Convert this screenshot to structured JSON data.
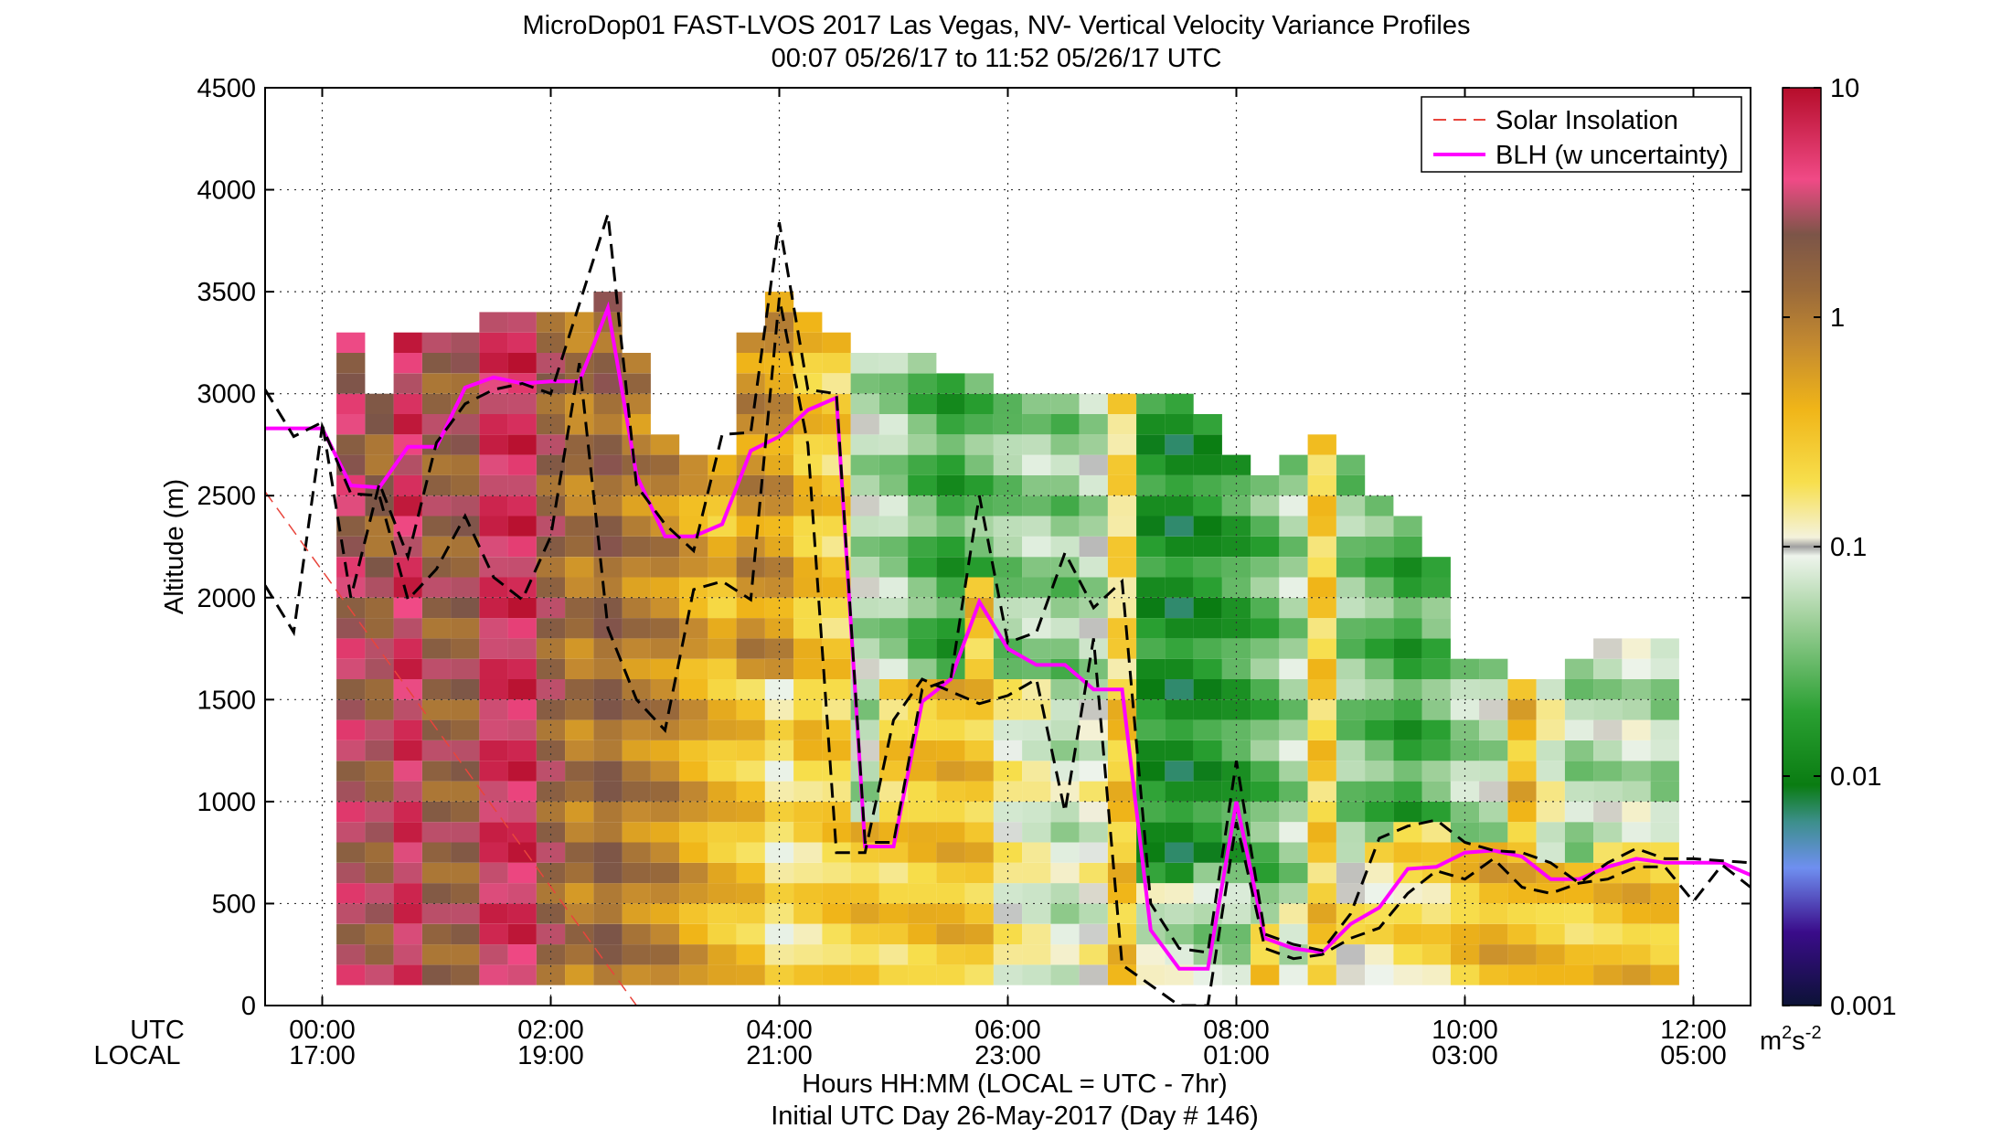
{
  "chart_data": {
    "type": "heatmap",
    "title": "MicroDop01 FAST-LVOS 2017 Las Vegas, NV- Vertical Velocity Variance Profiles",
    "subtitle": "00:07 05/26/17 to 11:52 05/26/17  UTC",
    "ylabel": "Altitude (m)",
    "xlabel": "Hours HH:MM  (LOCAL = UTC - 7hr)",
    "xlabel2": "Initial UTC Day 26-May-2017 (Day # 146)",
    "row_label_utc": "UTC",
    "row_label_local": "LOCAL",
    "xlim_hours": [
      -0.5,
      12.5
    ],
    "ylim": [
      0,
      4500
    ],
    "yticks": [
      0,
      500,
      1000,
      1500,
      2000,
      2500,
      3000,
      3500,
      4000,
      4500
    ],
    "xticks": [
      {
        "hour": 0,
        "utc": "00:00",
        "local": "17:00"
      },
      {
        "hour": 2,
        "utc": "02:00",
        "local": "19:00"
      },
      {
        "hour": 4,
        "utc": "04:00",
        "local": "21:00"
      },
      {
        "hour": 6,
        "utc": "06:00",
        "local": "23:00"
      },
      {
        "hour": 8,
        "utc": "08:00",
        "local": "01:00"
      },
      {
        "hour": 10,
        "utc": "10:00",
        "local": "03:00"
      },
      {
        "hour": 12,
        "utc": "12:00",
        "local": "05:00"
      }
    ],
    "grid": true,
    "legend_position": "top-right",
    "legend": [
      {
        "name": "Solar Insolation",
        "color": "#e8453c",
        "style": "dashed"
      },
      {
        "name": "BLH (w uncertainty)",
        "color": "#ff00ff",
        "style": "solid"
      }
    ],
    "colorbar": {
      "scale": "log",
      "range": [
        0.001,
        10
      ],
      "ticks": [
        {
          "value": 10,
          "label": "10"
        },
        {
          "value": 1,
          "label": "1"
        },
        {
          "value": 0.1,
          "label": "0.1"
        },
        {
          "value": 0.01,
          "label": "0.01"
        },
        {
          "value": 0.001,
          "label": "0.001"
        }
      ],
      "units": "m²s⁻²",
      "units_main": "m",
      "units_sup1": "2",
      "units_s": "s",
      "units_sup2": "-2"
    },
    "heatmap_note": "Columns every 15 min; cells 100 m tall; values in m2s-2 (log colour scale).",
    "heatmap_columns": [
      {
        "hour": 0.25,
        "top": 3300,
        "levels": [
          [
            3000,
            3.0
          ]
        ]
      },
      {
        "hour": 0.5,
        "top": 3000,
        "levels": [
          [
            2000,
            2.0
          ],
          [
            3000,
            1.5
          ]
        ]
      },
      {
        "hour": 0.75,
        "top": 3300,
        "levels": [
          [
            3000,
            5.0
          ]
        ]
      },
      {
        "hour": 1.0,
        "top": 3300,
        "levels": [
          [
            3000,
            1.8
          ]
        ]
      },
      {
        "hour": 1.25,
        "top": 3300,
        "levels": [
          [
            3000,
            1.8
          ]
        ]
      },
      {
        "hour": 1.5,
        "top": 3400,
        "levels": [
          [
            3000,
            5.0
          ]
        ]
      },
      {
        "hour": 1.75,
        "top": 3400,
        "levels": [
          [
            3000,
            5.5
          ]
        ]
      },
      {
        "hour": 2.0,
        "top": 3400,
        "levels": [
          [
            3000,
            1.8
          ]
        ]
      },
      {
        "hour": 2.25,
        "top": 3400,
        "levels": [
          [
            3000,
            1.0
          ]
        ]
      },
      {
        "hour": 2.5,
        "top": 3500,
        "levels": [
          [
            3000,
            1.5
          ]
        ]
      },
      {
        "hour": 2.75,
        "top": 3200,
        "levels": [
          [
            3000,
            0.9
          ]
        ]
      },
      {
        "hour": 3.0,
        "top": 2800,
        "levels": [
          [
            2800,
            0.8
          ]
        ]
      },
      {
        "hour": 3.25,
        "top": 2700,
        "levels": [
          [
            2500,
            0.5
          ]
        ]
      },
      {
        "hour": 3.5,
        "top": 2700,
        "levels": [
          [
            2500,
            0.35
          ]
        ]
      },
      {
        "hour": 3.75,
        "top": 3300,
        "levels": [
          [
            1500,
            0.3
          ],
          [
            3300,
            0.7
          ]
        ]
      },
      {
        "hour": 4.0,
        "top": 3500,
        "levels": [
          [
            1500,
            0.15
          ],
          [
            3500,
            0.6
          ]
        ]
      },
      {
        "hour": 4.25,
        "top": 3400,
        "levels": [
          [
            1000,
            0.2
          ],
          [
            3400,
            0.3
          ]
        ]
      },
      {
        "hour": 4.5,
        "top": 3300,
        "levels": [
          [
            3300,
            0.25
          ]
        ]
      },
      {
        "hour": 4.75,
        "top": 3200,
        "levels": [
          [
            800,
            0.3
          ],
          [
            3200,
            0.06
          ]
        ]
      },
      {
        "hour": 5.0,
        "top": 3200,
        "levels": [
          [
            1500,
            0.25
          ],
          [
            3200,
            0.05
          ]
        ]
      },
      {
        "hour": 5.25,
        "top": 3200,
        "levels": [
          [
            1500,
            0.3
          ],
          [
            3200,
            0.03
          ]
        ]
      },
      {
        "hour": 5.5,
        "top": 3100,
        "levels": [
          [
            1500,
            0.35
          ],
          [
            3100,
            0.02
          ]
        ]
      },
      {
        "hour": 5.75,
        "top": 3100,
        "levels": [
          [
            2000,
            0.3
          ],
          [
            3100,
            0.03
          ]
        ]
      },
      {
        "hour": 6.0,
        "top": 3000,
        "levels": [
          [
            1500,
            0.12
          ],
          [
            3000,
            0.04
          ]
        ]
      },
      {
        "hour": 6.25,
        "top": 3000,
        "levels": [
          [
            1500,
            0.1
          ],
          [
            3000,
            0.05
          ]
        ]
      },
      {
        "hour": 6.5,
        "top": 3000,
        "levels": [
          [
            1300,
            0.07
          ],
          [
            3000,
            0.04
          ]
        ]
      },
      {
        "hour": 6.75,
        "top": 3000,
        "levels": [
          [
            1300,
            0.1
          ],
          [
            3000,
            0.06
          ]
        ]
      },
      {
        "hour": 7.0,
        "top": 3000,
        "levels": [
          [
            1500,
            0.3
          ],
          [
            3000,
            0.2
          ]
        ]
      },
      {
        "hour": 7.25,
        "top": 3000,
        "levels": [
          [
            500,
            0.08
          ],
          [
            3000,
            0.015
          ]
        ]
      },
      {
        "hour": 7.5,
        "top": 3000,
        "levels": [
          [
            500,
            0.07
          ],
          [
            3000,
            0.012
          ]
        ]
      },
      {
        "hour": 7.75,
        "top": 2900,
        "levels": [
          [
            600,
            0.05
          ],
          [
            2900,
            0.015
          ]
        ]
      },
      {
        "hour": 8.0,
        "top": 2700,
        "levels": [
          [
            600,
            0.05
          ],
          [
            2700,
            0.02
          ]
        ]
      },
      {
        "hour": 8.25,
        "top": 2600,
        "levels": [
          [
            300,
            0.3
          ],
          [
            2600,
            0.03
          ]
        ]
      },
      {
        "hour": 8.5,
        "top": 2700,
        "levels": [
          [
            400,
            0.08
          ],
          [
            2700,
            0.05
          ]
        ]
      },
      {
        "hour": 8.75,
        "top": 2800,
        "levels": [
          [
            500,
            0.3
          ],
          [
            2800,
            0.25
          ]
        ]
      },
      {
        "hour": 9.0,
        "top": 2700,
        "levels": [
          [
            600,
            0.15
          ],
          [
            2700,
            0.04
          ]
        ]
      },
      {
        "hour": 9.25,
        "top": 2500,
        "levels": [
          [
            700,
            0.15
          ],
          [
            2500,
            0.03
          ]
        ]
      },
      {
        "hour": 9.5,
        "top": 2400,
        "levels": [
          [
            800,
            0.2
          ],
          [
            2400,
            0.02
          ]
        ]
      },
      {
        "hour": 9.75,
        "top": 2200,
        "levels": [
          [
            800,
            0.2
          ],
          [
            2200,
            0.03
          ]
        ]
      },
      {
        "hour": 10.0,
        "top": 1700,
        "levels": [
          [
            700,
            0.3
          ],
          [
            1700,
            0.05
          ]
        ]
      },
      {
        "hour": 10.25,
        "top": 1700,
        "levels": [
          [
            700,
            0.4
          ],
          [
            1700,
            0.06
          ]
        ]
      },
      {
        "hour": 10.5,
        "top": 1600,
        "levels": [
          [
            1600,
            0.35
          ]
        ]
      },
      {
        "hour": 10.75,
        "top": 1600,
        "levels": [
          [
            600,
            0.3
          ],
          [
            1600,
            0.1
          ]
        ]
      },
      {
        "hour": 11.0,
        "top": 1700,
        "levels": [
          [
            600,
            0.25
          ],
          [
            1700,
            0.05
          ]
        ]
      },
      {
        "hour": 11.25,
        "top": 1800,
        "levels": [
          [
            700,
            0.3
          ],
          [
            1800,
            0.06
          ]
        ]
      },
      {
        "hour": 11.5,
        "top": 1800,
        "levels": [
          [
            700,
            0.35
          ],
          [
            1800,
            0.07
          ]
        ]
      },
      {
        "hour": 11.75,
        "top": 1800,
        "levels": [
          [
            700,
            0.3
          ],
          [
            1800,
            0.05
          ]
        ]
      }
    ],
    "series": [
      {
        "name": "BLH (w uncertainty)",
        "color": "#ff00ff",
        "x": [
          -0.5,
          -0.25,
          0,
          0.25,
          0.5,
          0.75,
          1.0,
          1.25,
          1.5,
          1.75,
          2.0,
          2.25,
          2.5,
          2.75,
          3.0,
          3.25,
          3.5,
          3.75,
          4.0,
          4.25,
          4.5,
          4.75,
          5.0,
          5.25,
          5.5,
          5.75,
          6.0,
          6.25,
          6.5,
          6.75,
          7.0,
          7.25,
          7.5,
          7.75,
          8.0,
          8.25,
          8.5,
          8.75,
          9.0,
          9.25,
          9.5,
          9.75,
          10.0,
          10.25,
          10.5,
          10.75,
          11.0,
          11.25,
          11.5,
          11.75,
          12.0,
          12.25,
          12.5
        ],
        "y": [
          2830,
          2830,
          2830,
          2550,
          2540,
          2740,
          2740,
          3030,
          3080,
          3050,
          3060,
          3060,
          3420,
          2600,
          2300,
          2300,
          2360,
          2720,
          2790,
          2920,
          2980,
          780,
          780,
          1490,
          1600,
          1980,
          1750,
          1670,
          1670,
          1550,
          1550,
          370,
          180,
          180,
          1000,
          330,
          280,
          260,
          400,
          480,
          670,
          680,
          750,
          760,
          730,
          620,
          620,
          680,
          720,
          700,
          700,
          700,
          640
        ]
      },
      {
        "name": "BLH upper bound",
        "color": "#000000",
        "x": [
          -0.5,
          -0.25,
          0,
          0.25,
          0.5,
          0.75,
          1.0,
          1.25,
          1.5,
          1.75,
          2.0,
          2.25,
          2.5,
          2.75,
          3.0,
          3.25,
          3.5,
          3.75,
          4.0,
          4.25,
          4.5,
          4.75,
          5.0,
          5.25,
          5.5,
          5.75,
          6.0,
          6.25,
          6.5,
          6.75,
          7.0,
          7.25,
          7.5,
          7.75,
          8.0,
          8.25,
          8.5,
          8.75,
          9.0,
          9.25,
          9.5,
          9.75,
          10.0,
          10.25,
          10.5,
          10.75,
          11.0,
          11.25,
          11.5,
          11.75,
          12.0,
          12.25,
          12.5
        ],
        "y": [
          3020,
          2790,
          2860,
          2000,
          2560,
          2200,
          2760,
          2950,
          3020,
          3050,
          3000,
          3440,
          3880,
          2550,
          2360,
          2230,
          2800,
          2810,
          3840,
          3020,
          3000,
          800,
          800,
          1550,
          1600,
          2500,
          1780,
          1830,
          2220,
          1950,
          2080,
          500,
          280,
          260,
          1200,
          350,
          300,
          270,
          450,
          820,
          880,
          910,
          800,
          760,
          750,
          700,
          600,
          700,
          770,
          720,
          720,
          710,
          700
        ]
      },
      {
        "name": "BLH lower bound",
        "color": "#000000",
        "x": [
          -0.5,
          -0.25,
          0,
          0.25,
          0.5,
          0.75,
          1.0,
          1.25,
          1.5,
          1.75,
          2.0,
          2.25,
          2.5,
          2.75,
          3.0,
          3.25,
          3.5,
          3.75,
          4.0,
          4.25,
          4.5,
          4.75,
          5.0,
          5.25,
          5.5,
          5.75,
          6.0,
          6.25,
          6.5,
          6.75,
          7.0,
          7.25,
          7.5,
          7.75,
          8.0,
          8.25,
          8.5,
          8.75,
          9.0,
          9.25,
          9.5,
          9.75,
          10.0,
          10.25,
          10.5,
          10.75,
          11.0,
          11.25,
          11.5,
          11.75,
          12.0,
          12.25,
          12.5
        ],
        "y": [
          2060,
          1830,
          2840,
          2510,
          2500,
          1990,
          2140,
          2400,
          2100,
          1990,
          2300,
          3150,
          1850,
          1500,
          1350,
          2040,
          2080,
          1990,
          3470,
          2750,
          750,
          750,
          1400,
          1600,
          1540,
          1480,
          1520,
          1600,
          950,
          1800,
          200,
          100,
          0,
          0,
          900,
          280,
          230,
          250,
          330,
          380,
          550,
          660,
          620,
          720,
          580,
          550,
          600,
          620,
          680,
          680,
          510,
          690,
          580
        ]
      },
      {
        "name": "Solar Insolation",
        "color": "#e8453c",
        "x": [
          -0.5,
          2.75
        ],
        "y": [
          2520,
          0
        ]
      }
    ]
  }
}
